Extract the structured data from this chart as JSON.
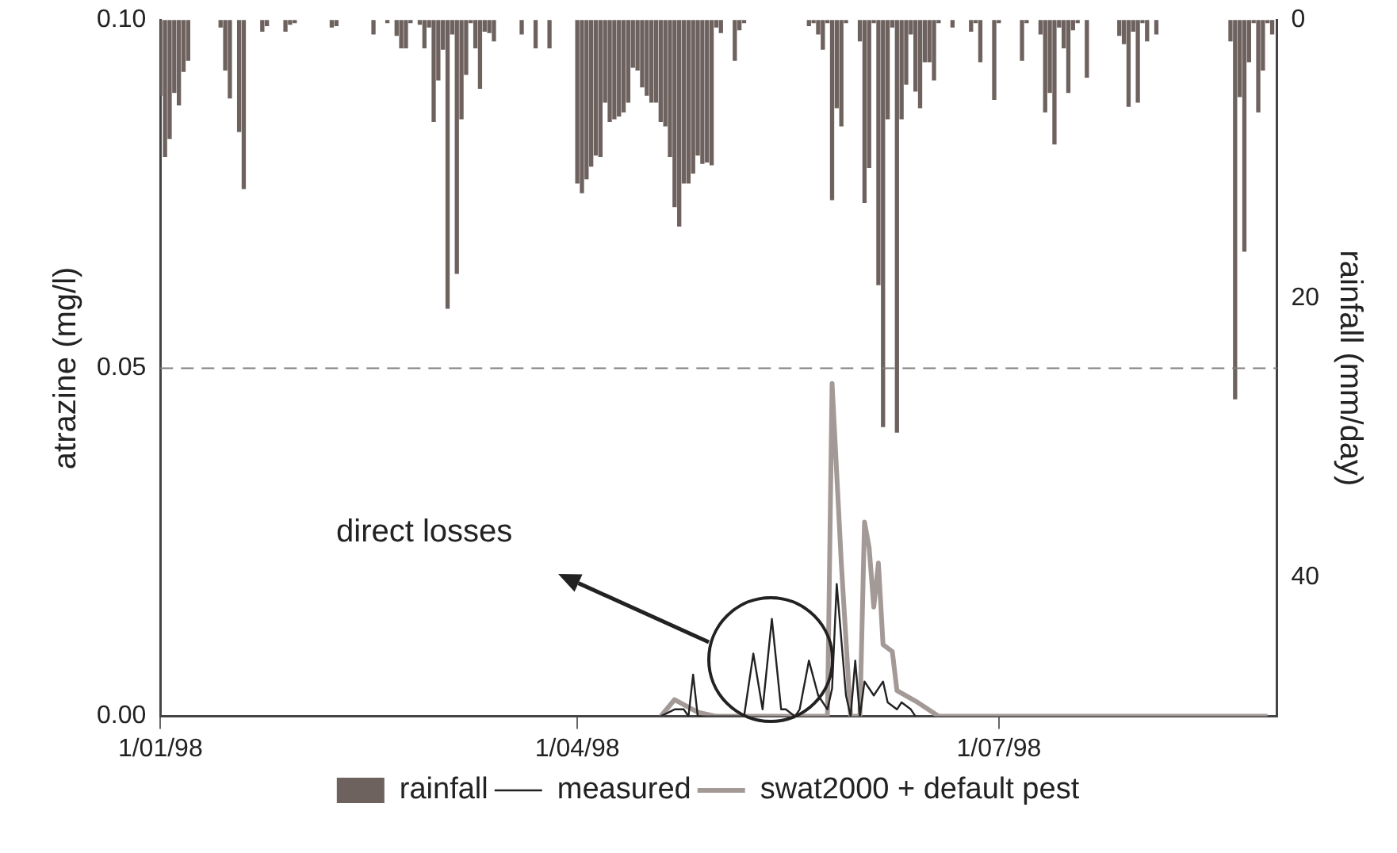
{
  "chart_data": {
    "type": "line",
    "ylabel": "atrazine (mg/l)",
    "y2label": "rainfall (mm/day)",
    "annotations": [
      "direct losses"
    ],
    "xlim": [
      "1998-01-01",
      "1998-08-30"
    ],
    "xticks": [
      {
        "value": "1998-01-01",
        "label": "1/01/98"
      },
      {
        "value": "1998-04-01",
        "label": "1/04/98"
      },
      {
        "value": "1998-07-01",
        "label": "1/07/98"
      }
    ],
    "ylim": [
      0,
      0.1
    ],
    "yticks": [
      {
        "value": 0,
        "label": "0.00"
      },
      {
        "value": 0.05,
        "label": "0.05"
      },
      {
        "value": 0.1,
        "label": "0.10"
      }
    ],
    "y2lim": [
      50,
      0
    ],
    "y2ticks": [
      0,
      20,
      40
    ],
    "ref_lines": [
      {
        "axis": "y",
        "value": 0.05,
        "color": "#7f7f7f",
        "line_style": "dashed"
      }
    ],
    "grid": false,
    "legend": "bottom",
    "marker": "none",
    "line_style": "solid",
    "series": [
      {
        "name": "rainfall",
        "type": "bar",
        "axis": "y2",
        "color": "#6e625f",
        "x": [
          "1998-01-01",
          "1998-01-02",
          "1998-01-03",
          "1998-01-04",
          "1998-01-05",
          "1998-01-06",
          "1998-01-07",
          "1998-01-14",
          "1998-01-15",
          "1998-01-16",
          "1998-01-18",
          "1998-01-19",
          "1998-01-23",
          "1998-01-24",
          "1998-01-28",
          "1998-01-29",
          "1998-01-30",
          "1998-02-07",
          "1998-02-08",
          "1998-02-16",
          "1998-02-19",
          "1998-02-21",
          "1998-02-22",
          "1998-02-23",
          "1998-02-24",
          "1998-02-26",
          "1998-02-27",
          "1998-02-28",
          "1998-03-01",
          "1998-03-02",
          "1998-03-03",
          "1998-03-04",
          "1998-03-05",
          "1998-03-06",
          "1998-03-07",
          "1998-03-08",
          "1998-03-09",
          "1998-03-10",
          "1998-03-11",
          "1998-03-12",
          "1998-03-13",
          "1998-03-14",
          "1998-03-20",
          "1998-03-23",
          "1998-03-26",
          "1998-04-01",
          "1998-04-02",
          "1998-04-03",
          "1998-04-04",
          "1998-04-05",
          "1998-04-06",
          "1998-04-07",
          "1998-04-08",
          "1998-04-09",
          "1998-04-10",
          "1998-04-11",
          "1998-04-12",
          "1998-04-13",
          "1998-04-14",
          "1998-04-15",
          "1998-04-16",
          "1998-04-17",
          "1998-04-18",
          "1998-04-19",
          "1998-04-20",
          "1998-04-21",
          "1998-04-22",
          "1998-04-23",
          "1998-04-24",
          "1998-04-25",
          "1998-04-26",
          "1998-04-27",
          "1998-04-28",
          "1998-04-29",
          "1998-04-30",
          "1998-05-01",
          "1998-05-02",
          "1998-05-05",
          "1998-05-06",
          "1998-05-07",
          "1998-05-21",
          "1998-05-22",
          "1998-05-23",
          "1998-05-24",
          "1998-05-25",
          "1998-05-26",
          "1998-05-27",
          "1998-05-28",
          "1998-05-29",
          "1998-06-01",
          "1998-06-02",
          "1998-06-03",
          "1998-06-04",
          "1998-06-05",
          "1998-06-06",
          "1998-06-07",
          "1998-06-08",
          "1998-06-09",
          "1998-06-10",
          "1998-06-11",
          "1998-06-12",
          "1998-06-13",
          "1998-06-14",
          "1998-06-15",
          "1998-06-16",
          "1998-06-17",
          "1998-06-18",
          "1998-06-21",
          "1998-06-25",
          "1998-06-26",
          "1998-06-27",
          "1998-06-30",
          "1998-07-01",
          "1998-07-06",
          "1998-07-07",
          "1998-07-10",
          "1998-07-11",
          "1998-07-12",
          "1998-07-13",
          "1998-07-14",
          "1998-07-15",
          "1998-07-16",
          "1998-07-17",
          "1998-07-18",
          "1998-07-20",
          "1998-07-27",
          "1998-07-28",
          "1998-07-29",
          "1998-07-30",
          "1998-07-31",
          "1998-08-01",
          "1998-08-02",
          "1998-08-04",
          "1998-08-20",
          "1998-08-21",
          "1998-08-22",
          "1998-08-23",
          "1998-08-24",
          "1998-08-25",
          "1998-08-26",
          "1998-08-27",
          "1998-08-28",
          "1998-08-29"
        ],
        "values": [
          5.4,
          9.8,
          8.5,
          5.2,
          6.1,
          3.7,
          2.9,
          0.5,
          3.6,
          5.6,
          8.0,
          12.1,
          0.8,
          0.4,
          0.8,
          0.3,
          0.2,
          0.5,
          0.4,
          1.0,
          0.2,
          1.1,
          2.0,
          2.0,
          0.2,
          0.3,
          2.0,
          0.5,
          7.3,
          4.3,
          2.1,
          20.7,
          1.0,
          18.2,
          7.1,
          3.9,
          0.2,
          2.0,
          4.9,
          0.8,
          0.9,
          1.5,
          1.0,
          2.0,
          2.0,
          11.7,
          12.4,
          11.4,
          10.5,
          9.7,
          9.8,
          5.9,
          7.3,
          7.1,
          6.9,
          6.6,
          5.9,
          3.4,
          3.6,
          4.8,
          5.4,
          5.9,
          5.9,
          7.3,
          7.6,
          9.8,
          13.4,
          14.8,
          11.7,
          11.7,
          11.0,
          9.7,
          10.3,
          10.2,
          10.4,
          0.5,
          0.9,
          2.9,
          0.7,
          0.2,
          0.4,
          0.2,
          1.0,
          2.1,
          0.2,
          12.9,
          6.3,
          7.6,
          0.2,
          1.5,
          13.1,
          10.6,
          0.2,
          19.0,
          29.2,
          7.1,
          0.5,
          29.6,
          7.1,
          4.6,
          1.0,
          5.1,
          6.3,
          3.0,
          3.0,
          4.3,
          0.2,
          0.5,
          0.8,
          0.2,
          3.0,
          5.7,
          0.2,
          2.9,
          0.2,
          1.0,
          6.6,
          5.2,
          8.9,
          0.5,
          2.0,
          5.2,
          0.7,
          0.2,
          4.1,
          1.1,
          1.7,
          6.2,
          0.8,
          5.9,
          0.2,
          1.5,
          1.0,
          1.5,
          27.2,
          5.5,
          16.6,
          3.0,
          0.2,
          6.6,
          3.6,
          0.2,
          1.0
        ]
      },
      {
        "name": "measured",
        "color": "#222222",
        "x": [
          "1998-04-19",
          "1998-04-22",
          "1998-04-24",
          "1998-04-25",
          "1998-04-26",
          "1998-04-27",
          "1998-05-03",
          "1998-05-07",
          "1998-05-09",
          "1998-05-11",
          "1998-05-13",
          "1998-05-15",
          "1998-05-16",
          "1998-05-18",
          "1998-05-19",
          "1998-05-21",
          "1998-05-23",
          "1998-05-25",
          "1998-05-26",
          "1998-05-27",
          "1998-05-29",
          "1998-05-30",
          "1998-05-31",
          "1998-06-01",
          "1998-06-02",
          "1998-06-04",
          "1998-06-06",
          "1998-06-07",
          "1998-06-09",
          "1998-06-10",
          "1998-06-12",
          "1998-06-13"
        ],
        "values": [
          0,
          0.001,
          0.001,
          0,
          0.006,
          0,
          0,
          0,
          0.009,
          0.001,
          0.014,
          0.001,
          0.001,
          0,
          0.001,
          0.008,
          0.003,
          0.001,
          0.004,
          0.019,
          0.003,
          0,
          0.008,
          0,
          0.005,
          0.003,
          0.005,
          0.002,
          0.001,
          0.002,
          0.001,
          0
        ]
      },
      {
        "name": "swat2000 + default pest",
        "color": "#a39a97",
        "x": [
          "1998-04-19",
          "1998-04-22",
          "1998-04-27",
          "1998-05-01",
          "1998-05-25",
          "1998-05-26",
          "1998-05-28",
          "1998-05-30",
          "1998-06-01",
          "1998-06-02",
          "1998-06-03",
          "1998-06-04",
          "1998-06-05",
          "1998-06-06",
          "1998-06-08",
          "1998-06-09",
          "1998-06-13",
          "1998-06-16",
          "1998-06-18",
          "1998-08-28"
        ],
        "values": [
          0,
          0.0024,
          0.0006,
          0,
          0,
          0.0478,
          0.0219,
          0,
          0,
          0.0279,
          0.0242,
          0.0157,
          0.022,
          0.0103,
          0.0093,
          0.0037,
          0.0022,
          0.0009,
          0,
          0
        ]
      }
    ]
  }
}
